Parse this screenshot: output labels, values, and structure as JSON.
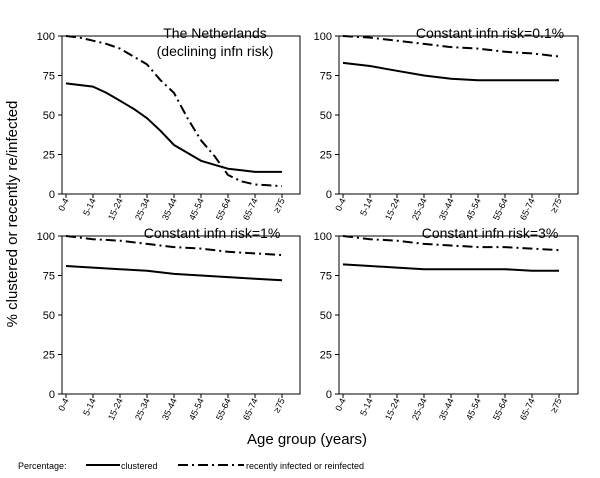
{
  "chart_data": {
    "type": "line",
    "shared": {
      "ylabel": "% clustered or recently re/infected",
      "xlabel": "Age group (years)",
      "categories": [
        "0-4",
        "5-14",
        "15-24",
        "25-34",
        "35-44",
        "45-54",
        "55-64",
        "65-74",
        "≥75"
      ],
      "yticks": [
        "0",
        "25",
        "50",
        "75",
        "100"
      ],
      "ylim": [
        0,
        100
      ],
      "legend": {
        "title": "Percentage:",
        "placement": "bottom",
        "entries": [
          "clustered",
          "recently infected or reinfected"
        ]
      }
    },
    "panels": [
      {
        "title_lines": [
          "The Netherlands",
          "(declining infn risk)"
        ],
        "series": [
          {
            "name": "clustered",
            "style": "solid",
            "x": [
              0,
              0.5,
              1,
              1.5,
              2,
              2.5,
              3,
              3.5,
              4,
              4.5,
              5,
              5.5,
              6,
              6.5,
              7,
              7.5,
              8
            ],
            "values": [
              70,
              69,
              68,
              64,
              59,
              54,
              48,
              40,
              31,
              26,
              21,
              18.5,
              16,
              15,
              14,
              14,
              14
            ]
          },
          {
            "name": "recently infected or reinfected",
            "style": "dashdot",
            "x": [
              0,
              0.5,
              1,
              1.5,
              2,
              2.5,
              3,
              3.5,
              4,
              4.5,
              5,
              5.5,
              6,
              6.5,
              7,
              7.5,
              8
            ],
            "values": [
              100,
              99,
              97,
              95,
              92,
              87,
              82,
              72,
              64,
              48,
              34,
              24,
              12,
              8,
              6,
              5.5,
              5
            ]
          }
        ]
      },
      {
        "title_lines": [
          "Constant infn risk=0.1%"
        ],
        "series": [
          {
            "name": "clustered",
            "style": "solid",
            "x": [
              0,
              1,
              2,
              3,
              4,
              5,
              6,
              7,
              8
            ],
            "values": [
              83,
              81,
              78,
              75,
              73,
              72,
              72,
              72,
              72
            ]
          },
          {
            "name": "recently infected or reinfected",
            "style": "dashdot",
            "x": [
              0,
              1,
              2,
              3,
              4,
              5,
              6,
              7,
              8
            ],
            "values": [
              100,
              99,
              97,
              95,
              93,
              92,
              90,
              89,
              87
            ]
          }
        ]
      },
      {
        "title_lines": [
          "Constant infn risk=1%"
        ],
        "series": [
          {
            "name": "clustered",
            "style": "solid",
            "x": [
              0,
              1,
              2,
              3,
              4,
              5,
              6,
              7,
              8
            ],
            "values": [
              81,
              80,
              79,
              78,
              76,
              75,
              74,
              73,
              72
            ]
          },
          {
            "name": "recently infected or reinfected",
            "style": "dashdot",
            "x": [
              0,
              1,
              2,
              3,
              4,
              5,
              6,
              7,
              8
            ],
            "values": [
              100,
              98,
              97,
              95,
              93,
              92,
              90,
              89,
              88
            ]
          }
        ]
      },
      {
        "title_lines": [
          "Constant infn risk=3%"
        ],
        "series": [
          {
            "name": "clustered",
            "style": "solid",
            "x": [
              0,
              1,
              2,
              3,
              4,
              5,
              6,
              7,
              8
            ],
            "values": [
              82,
              81,
              80,
              79,
              79,
              79,
              79,
              78,
              78
            ]
          },
          {
            "name": "recently infected or reinfected",
            "style": "dashdot",
            "x": [
              0,
              1,
              2,
              3,
              4,
              5,
              6,
              7,
              8
            ],
            "values": [
              100,
              98,
              97,
              95,
              94,
              93,
              93,
              92,
              91
            ]
          }
        ]
      }
    ]
  }
}
